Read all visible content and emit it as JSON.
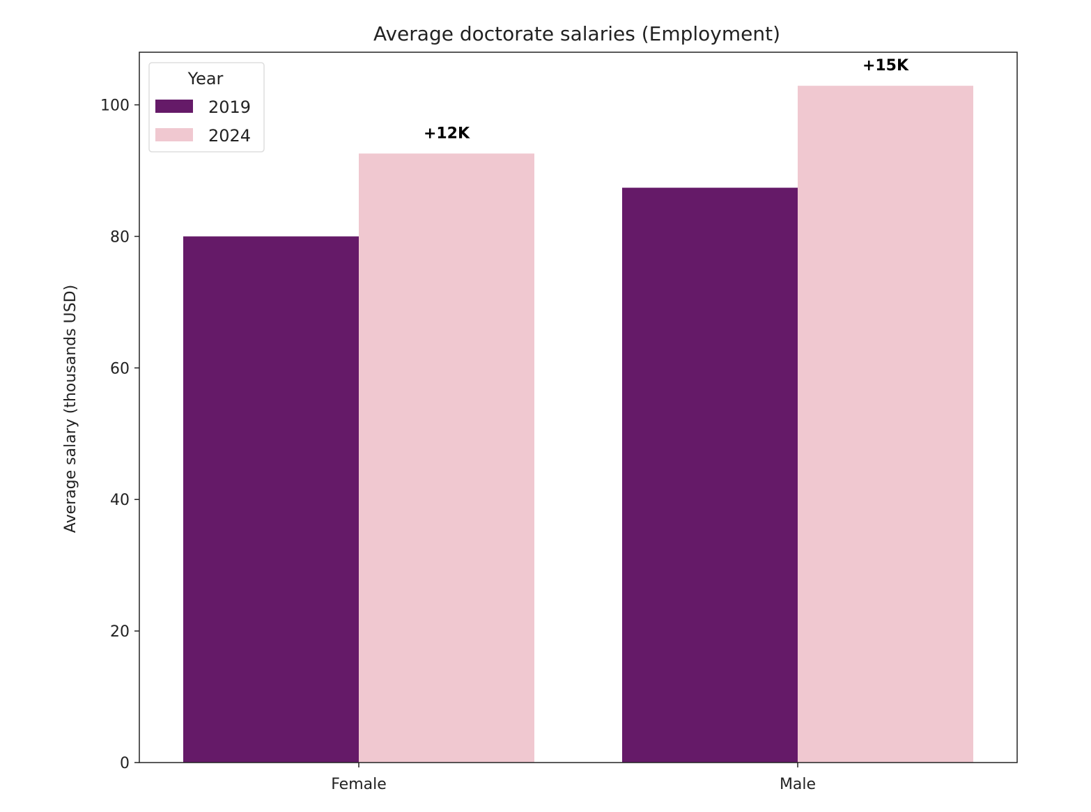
{
  "chart_data": {
    "type": "bar",
    "title": "Average doctorate salaries (Employment)",
    "xlabel": "",
    "ylabel": "Average salary (thousands USD)",
    "categories": [
      "Female",
      "Male"
    ],
    "series": [
      {
        "name": "2019",
        "values": [
          80.0,
          87.4
        ],
        "color": "#651a68"
      },
      {
        "name": "2024",
        "values": [
          92.6,
          102.9
        ],
        "color": "#f0c8d0"
      }
    ],
    "annotations": [
      {
        "category": "Female",
        "text": "+12K"
      },
      {
        "category": "Male",
        "text": "+15K"
      }
    ],
    "ylim": [
      0,
      108
    ],
    "yticks": [
      0,
      20,
      40,
      60,
      80,
      100
    ],
    "grid": false,
    "legend": {
      "title": "Year",
      "placement": "top-left"
    }
  }
}
